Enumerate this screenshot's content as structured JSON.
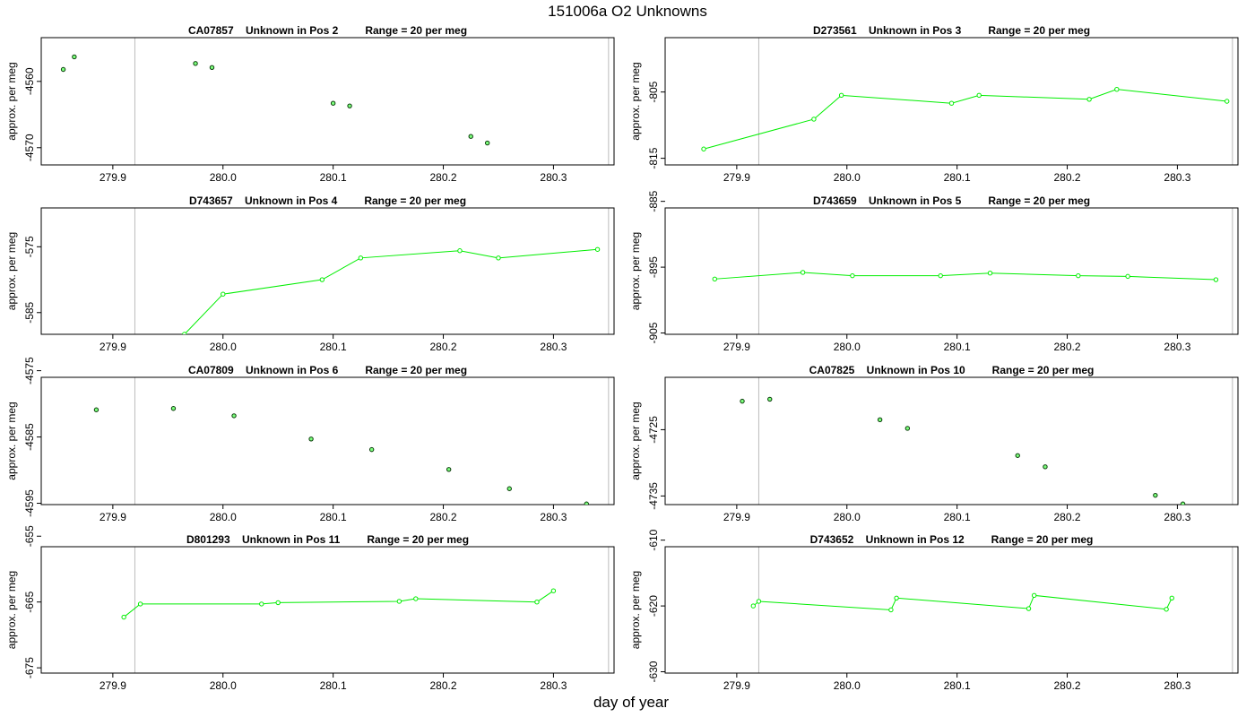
{
  "figure": {
    "title": "151006a  O2 Unknowns",
    "xlabel": "day of year"
  },
  "colors": {
    "series": "#00ee00",
    "point_edge_pos2": "#003300",
    "refline": "#bbbbbb",
    "axis": "#000000"
  },
  "chart_data": [
    {
      "type": "line",
      "title": "CA07857    Unknown in Pos 2         Range = 20 per meg",
      "ylabel": "approx. per meg",
      "xlim": [
        279.835,
        280.355
      ],
      "ylim": [
        -4572.6,
        -4553.4
      ],
      "yticks": [
        -4560,
        -4570
      ],
      "xticks": [
        279.9,
        280.0,
        280.1,
        280.2,
        280.3
      ],
      "xticks_labels": [
        "279.9",
        "280.0",
        "280.1",
        "280.2",
        "280.3"
      ],
      "vlines": [
        279.92,
        280.35
      ],
      "lines": false,
      "point_style": "dark",
      "x": [
        279.855,
        279.865,
        279.975,
        279.99,
        280.1,
        280.115,
        280.225,
        280.24
      ],
      "y": [
        -4558.2,
        -4556.3,
        -4557.3,
        -4557.9,
        -4563.3,
        -4563.7,
        -4568.3,
        -4569.3
      ]
    },
    {
      "type": "line",
      "title": "D273561    Unknown in Pos 3         Range = 20 per meg",
      "ylabel": "approx. per meg",
      "xlim": [
        279.835,
        280.355
      ],
      "ylim": [
        -816.0,
        -796.8
      ],
      "yticks": [
        -805,
        -815
      ],
      "xticks": [
        279.9,
        280.0,
        280.1,
        280.2,
        280.3
      ],
      "xticks_labels": [
        "279.9",
        "280.0",
        "280.1",
        "280.2",
        "280.3"
      ],
      "vlines": [
        279.92,
        280.35
      ],
      "lines": true,
      "point_style": "green",
      "x": [
        279.87,
        279.97,
        279.995,
        280.095,
        280.12,
        280.22,
        280.245,
        280.345
      ],
      "y": [
        -813.6,
        -809.1,
        -805.5,
        -806.7,
        -805.5,
        -806.1,
        -804.6,
        -806.4
      ]
    },
    {
      "type": "line",
      "title": "D743657    Unknown in Pos 4         Range = 20 per meg",
      "ylabel": "approx. per meg",
      "xlim": [
        279.835,
        280.355
      ],
      "ylim": [
        -588.3,
        -569.1
      ],
      "yticks": [
        -575,
        -585
      ],
      "xticks": [
        279.9,
        280.0,
        280.1,
        280.2,
        280.3
      ],
      "xticks_labels": [
        "279.9",
        "280.0",
        "280.1",
        "280.2",
        "280.3"
      ],
      "vlines": [
        279.92,
        280.35
      ],
      "lines": true,
      "point_style": "green",
      "x": [
        279.965,
        280.0,
        280.09,
        280.125,
        280.215,
        280.25,
        280.34
      ],
      "y": [
        -588.3,
        -582.2,
        -580.0,
        -576.7,
        -575.6,
        -576.7,
        -575.4
      ]
    },
    {
      "type": "line",
      "title": "D743659    Unknown in Pos 5         Range = 20 per meg",
      "ylabel": "approx. per meg",
      "xlim": [
        279.835,
        280.355
      ],
      "ylim": [
        -905.2,
        -886.0
      ],
      "yticks": [
        -885,
        -895,
        -905
      ],
      "xticks": [
        279.9,
        280.0,
        280.1,
        280.2,
        280.3
      ],
      "xticks_labels": [
        "279.9",
        "280.0",
        "280.1",
        "280.2",
        "280.3"
      ],
      "vlines": [
        279.92,
        280.35
      ],
      "lines": true,
      "point_style": "green",
      "x": [
        279.88,
        279.96,
        280.005,
        280.085,
        280.13,
        280.21,
        280.255,
        280.335
      ],
      "y": [
        -896.8,
        -895.8,
        -896.3,
        -896.3,
        -895.9,
        -896.3,
        -896.4,
        -896.9
      ]
    },
    {
      "type": "line",
      "title": "CA07809    Unknown in Pos 6         Range = 20 per meg",
      "ylabel": "approx. per meg",
      "xlim": [
        279.835,
        280.355
      ],
      "ylim": [
        -4595.2,
        -4576.0
      ],
      "yticks": [
        -4575,
        -4585,
        -4595
      ],
      "xticks": [
        279.9,
        280.0,
        280.1,
        280.2,
        280.3
      ],
      "xticks_labels": [
        "279.9",
        "280.0",
        "280.1",
        "280.2",
        "280.3"
      ],
      "vlines": [
        279.92,
        280.35
      ],
      "lines": false,
      "point_style": "dark",
      "x": [
        279.885,
        279.955,
        280.01,
        280.08,
        280.135,
        280.205,
        280.26,
        280.33
      ],
      "y": [
        -4580.9,
        -4580.7,
        -4581.8,
        -4585.3,
        -4586.9,
        -4589.9,
        -4592.8,
        -4595.1
      ]
    },
    {
      "type": "line",
      "title": "CA07825    Unknown in Pos 10         Range = 20 per meg",
      "ylabel": "approx. per meg",
      "xlim": [
        279.835,
        280.355
      ],
      "ylim": [
        -4736.3,
        -4717.1
      ],
      "yticks": [
        -4725,
        -4735
      ],
      "xticks": [
        279.9,
        280.0,
        280.1,
        280.2,
        280.3
      ],
      "xticks_labels": [
        "279.9",
        "280.0",
        "280.1",
        "280.2",
        "280.3"
      ],
      "vlines": [
        279.92,
        280.35
      ],
      "lines": false,
      "point_style": "dark",
      "x": [
        279.905,
        279.93,
        280.03,
        280.055,
        280.155,
        280.18,
        280.28,
        280.305
      ],
      "y": [
        -4720.7,
        -4720.4,
        -4723.5,
        -4724.8,
        -4728.9,
        -4730.6,
        -4734.9,
        -4736.2
      ]
    },
    {
      "type": "line",
      "title": "D801293    Unknown in Pos 11         Range = 20 per meg",
      "ylabel": "approx. per meg",
      "xlim": [
        279.835,
        280.355
      ],
      "ylim": [
        -675.8,
        -656.6
      ],
      "yticks": [
        -655,
        -665,
        -675
      ],
      "xticks": [
        279.9,
        280.0,
        280.1,
        280.2,
        280.3
      ],
      "xticks_labels": [
        "279.9",
        "280.0",
        "280.1",
        "280.2",
        "280.3"
      ],
      "vlines": [
        279.92,
        280.35
      ],
      "lines": true,
      "point_style": "green",
      "x": [
        279.91,
        279.925,
        280.035,
        280.05,
        280.16,
        280.175,
        280.285,
        280.3
      ],
      "y": [
        -667.3,
        -665.3,
        -665.3,
        -665.1,
        -664.9,
        -664.5,
        -665.0,
        -663.3
      ]
    },
    {
      "type": "line",
      "title": "D743652    Unknown in Pos 12         Range = 20 per meg",
      "ylabel": "approx. per meg",
      "xlim": [
        279.835,
        280.355
      ],
      "ylim": [
        -630.2,
        -611.0
      ],
      "yticks": [
        -610,
        -620,
        -630
      ],
      "xticks": [
        279.9,
        280.0,
        280.1,
        280.2,
        280.3
      ],
      "xticks_labels": [
        "279.9",
        "280.0",
        "280.1",
        "280.2",
        "280.3"
      ],
      "vlines": [
        279.92,
        280.35
      ],
      "lines": true,
      "point_style": "green",
      "x": [
        279.915,
        279.92,
        280.04,
        280.045,
        280.165,
        280.17,
        280.29,
        280.295
      ],
      "y": [
        -620.0,
        -619.3,
        -620.6,
        -618.8,
        -620.4,
        -618.4,
        -620.5,
        -618.8
      ]
    }
  ]
}
